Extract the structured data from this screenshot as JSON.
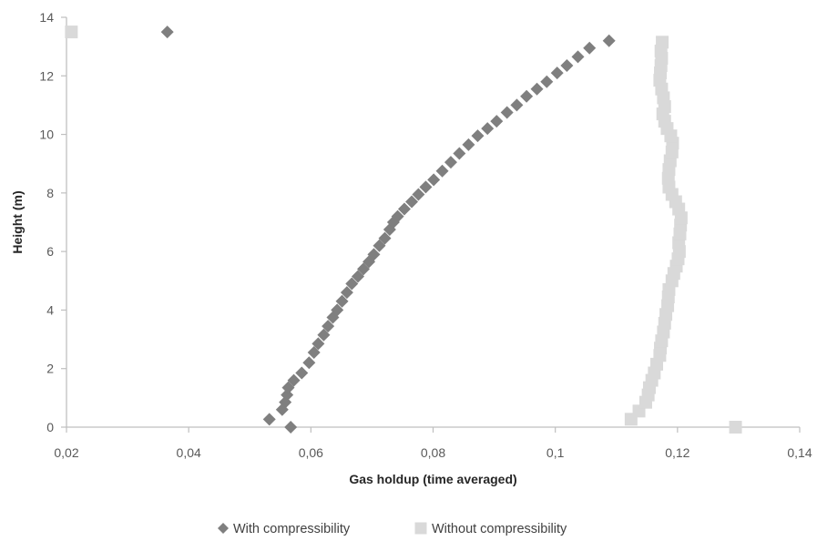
{
  "chart_data": {
    "type": "scatter",
    "title": "",
    "xlabel": "Gas holdup (time averaged)",
    "ylabel": "Height (m)",
    "xlim": [
      0.02,
      0.14
    ],
    "ylim": [
      0,
      14
    ],
    "x_ticks": [
      0.02,
      0.04,
      0.06,
      0.08,
      0.1,
      0.12,
      0.14
    ],
    "x_tick_labels": [
      "0,02",
      "0,04",
      "0,06",
      "0,08",
      "0,1",
      "0,12",
      "0,14"
    ],
    "y_ticks": [
      0,
      2,
      4,
      6,
      8,
      10,
      12,
      14
    ],
    "y_tick_labels": [
      "0",
      "2",
      "4",
      "6",
      "8",
      "10",
      "12",
      "14"
    ],
    "grid": false,
    "legend_position": "bottom",
    "series": [
      {
        "name": "With compressibility",
        "marker": "diamond",
        "color": "#7f7f7f",
        "points": [
          [
            0.0567,
            0.0
          ],
          [
            0.0532,
            0.27
          ],
          [
            0.0553,
            0.6
          ],
          [
            0.0558,
            0.85
          ],
          [
            0.0561,
            1.1
          ],
          [
            0.0563,
            1.35
          ],
          [
            0.0572,
            1.6
          ],
          [
            0.0585,
            1.85
          ],
          [
            0.0597,
            2.2
          ],
          [
            0.0605,
            2.55
          ],
          [
            0.0612,
            2.85
          ],
          [
            0.0621,
            3.15
          ],
          [
            0.0628,
            3.45
          ],
          [
            0.0636,
            3.75
          ],
          [
            0.0643,
            4.0
          ],
          [
            0.0651,
            4.3
          ],
          [
            0.0659,
            4.6
          ],
          [
            0.0667,
            4.9
          ],
          [
            0.0677,
            5.15
          ],
          [
            0.0686,
            5.4
          ],
          [
            0.0695,
            5.65
          ],
          [
            0.0703,
            5.9
          ],
          [
            0.0712,
            6.2
          ],
          [
            0.0721,
            6.45
          ],
          [
            0.0729,
            6.75
          ],
          [
            0.0735,
            7.0
          ],
          [
            0.0742,
            7.2
          ],
          [
            0.0753,
            7.45
          ],
          [
            0.0765,
            7.7
          ],
          [
            0.0776,
            7.95
          ],
          [
            0.0788,
            8.2
          ],
          [
            0.0801,
            8.45
          ],
          [
            0.0815,
            8.75
          ],
          [
            0.0829,
            9.05
          ],
          [
            0.0843,
            9.35
          ],
          [
            0.0858,
            9.65
          ],
          [
            0.0873,
            9.95
          ],
          [
            0.0889,
            10.2
          ],
          [
            0.0904,
            10.45
          ],
          [
            0.0921,
            10.75
          ],
          [
            0.0937,
            11.0
          ],
          [
            0.0953,
            11.3
          ],
          [
            0.097,
            11.55
          ],
          [
            0.0986,
            11.8
          ],
          [
            0.1003,
            12.1
          ],
          [
            0.1019,
            12.35
          ],
          [
            0.1037,
            12.65
          ],
          [
            0.1056,
            12.95
          ],
          [
            0.1088,
            13.2
          ],
          [
            0.0365,
            13.5
          ]
        ]
      },
      {
        "name": "Without compressibility",
        "marker": "square",
        "color": "#d9d9d9",
        "points": [
          [
            0.1295,
            0.0
          ],
          [
            0.1124,
            0.27
          ],
          [
            0.1137,
            0.55
          ],
          [
            0.1148,
            0.85
          ],
          [
            0.1152,
            1.1
          ],
          [
            0.1154,
            1.35
          ],
          [
            0.1158,
            1.6
          ],
          [
            0.1162,
            1.85
          ],
          [
            0.1166,
            2.15
          ],
          [
            0.1171,
            2.45
          ],
          [
            0.1172,
            2.7
          ],
          [
            0.1174,
            2.95
          ],
          [
            0.1177,
            3.25
          ],
          [
            0.1179,
            3.55
          ],
          [
            0.1181,
            3.85
          ],
          [
            0.1184,
            4.15
          ],
          [
            0.1185,
            4.45
          ],
          [
            0.1186,
            4.7
          ],
          [
            0.1191,
            5.0
          ],
          [
            0.1194,
            5.25
          ],
          [
            0.1198,
            5.5
          ],
          [
            0.1201,
            5.75
          ],
          [
            0.1203,
            6.0
          ],
          [
            0.1202,
            6.3
          ],
          [
            0.1204,
            6.6
          ],
          [
            0.1205,
            6.9
          ],
          [
            0.1206,
            7.15
          ],
          [
            0.1202,
            7.45
          ],
          [
            0.1197,
            7.7
          ],
          [
            0.1191,
            7.95
          ],
          [
            0.1186,
            8.2
          ],
          [
            0.1185,
            8.5
          ],
          [
            0.1186,
            8.8
          ],
          [
            0.1188,
            9.1
          ],
          [
            0.1191,
            9.4
          ],
          [
            0.1192,
            9.7
          ],
          [
            0.1189,
            9.95
          ],
          [
            0.1183,
            10.2
          ],
          [
            0.1179,
            10.45
          ],
          [
            0.1176,
            10.7
          ],
          [
            0.1179,
            10.95
          ],
          [
            0.1177,
            11.25
          ],
          [
            0.1174,
            11.55
          ],
          [
            0.1171,
            11.85
          ],
          [
            0.1172,
            12.1
          ],
          [
            0.1173,
            12.35
          ],
          [
            0.1174,
            12.6
          ],
          [
            0.1173,
            12.85
          ],
          [
            0.1175,
            13.15
          ],
          [
            0.0208,
            13.5
          ]
        ]
      }
    ]
  }
}
